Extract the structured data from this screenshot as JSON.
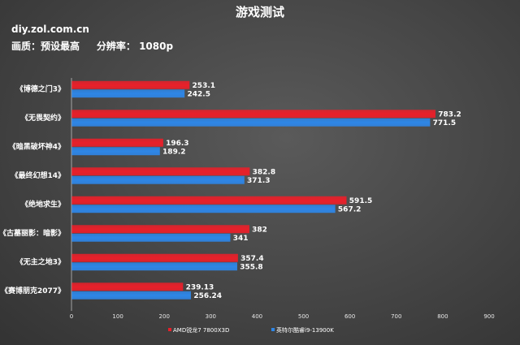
{
  "header": {
    "title": "游戏测试",
    "site": "diy.zol.com.cn",
    "quality_label": "画质：预设最高",
    "resolution_label": "分辨率： 1080p"
  },
  "colors": {
    "amd": "#e8202a",
    "intel": "#2e86e6",
    "background": "#4a4a4a"
  },
  "chart_data": {
    "type": "bar",
    "orientation": "horizontal",
    "title": "游戏测试",
    "categories": [
      "《博德之门3》",
      "《无畏契约》",
      "《暗黑破坏神4》",
      "《最终幻想14》",
      "《绝地求生》",
      "《古墓丽影：暗影》",
      "《无主之地3》",
      "《赛博朋克2077》"
    ],
    "series": [
      {
        "name": "AMD锐龙7 7800X3D",
        "color": "#e8202a",
        "values": [
          253.1,
          783.2,
          196.3,
          382.8,
          591.5,
          382,
          357.4,
          239.13
        ],
        "labels": [
          "253.1",
          "783.2",
          "196.3",
          "382.8",
          "591.5",
          "382",
          "357.4",
          "239.13"
        ]
      },
      {
        "name": "英特尔酷睿i9-13900K",
        "color": "#2e86e6",
        "values": [
          242.5,
          771.5,
          189.2,
          371.3,
          567.2,
          341,
          355.8,
          256.24
        ],
        "labels": [
          "242.5",
          "771.5",
          "189.2",
          "371.3",
          "567.2",
          "341",
          "355.8",
          "256.24"
        ]
      }
    ],
    "xlim": [
      0,
      900
    ],
    "xticks": [
      "0",
      "100",
      "200",
      "300",
      "400",
      "500",
      "600",
      "700",
      "800",
      "900"
    ],
    "grid": false,
    "legend_position": "bottom"
  }
}
